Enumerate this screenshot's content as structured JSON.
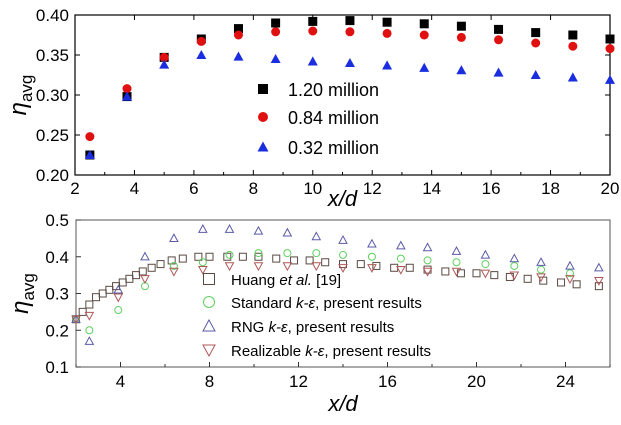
{
  "chart_data": [
    {
      "type": "scatter",
      "xlabel": "x/d",
      "ylabel": "η_avg",
      "xlim": [
        2,
        20
      ],
      "ylim": [
        0.2,
        0.4
      ],
      "xticks": [
        "2",
        "4",
        "6",
        "8",
        "10",
        "12",
        "14",
        "16",
        "18",
        "20"
      ],
      "yticks": [
        "0.20",
        "0.25",
        "0.30",
        "0.35",
        "0.40"
      ],
      "legend_position": "right",
      "series": [
        {
          "name": "1.20 million",
          "marker": "square",
          "filled": true,
          "color": "#000000",
          "x": [
            2.5,
            3.75,
            5.0,
            6.25,
            7.5,
            8.75,
            10.0,
            11.25,
            12.5,
            13.75,
            15.0,
            16.25,
            17.5,
            18.75,
            20.0
          ],
          "y": [
            0.225,
            0.298,
            0.347,
            0.37,
            0.383,
            0.39,
            0.392,
            0.393,
            0.391,
            0.389,
            0.386,
            0.382,
            0.378,
            0.375,
            0.37
          ]
        },
        {
          "name": "0.84 million",
          "marker": "circle",
          "filled": true,
          "color": "#e01010",
          "x": [
            2.5,
            3.75,
            5.0,
            6.25,
            7.5,
            8.75,
            10.0,
            11.25,
            12.5,
            13.75,
            15.0,
            16.25,
            17.5,
            18.75,
            20.0
          ],
          "y": [
            0.248,
            0.308,
            0.347,
            0.367,
            0.375,
            0.379,
            0.38,
            0.379,
            0.377,
            0.375,
            0.372,
            0.369,
            0.365,
            0.361,
            0.358
          ]
        },
        {
          "name": "0.32 million",
          "marker": "triangle",
          "filled": true,
          "color": "#1a2ee0",
          "x": [
            2.5,
            3.75,
            5.0,
            6.25,
            7.5,
            8.75,
            10.0,
            11.25,
            12.5,
            13.75,
            15.0,
            16.25,
            17.5,
            18.75,
            20.0
          ],
          "y": [
            0.225,
            0.298,
            0.338,
            0.35,
            0.348,
            0.345,
            0.342,
            0.34,
            0.337,
            0.334,
            0.331,
            0.328,
            0.325,
            0.322,
            0.319
          ]
        }
      ]
    },
    {
      "type": "scatter",
      "xlabel": "x/d",
      "ylabel": "η_avg",
      "xlim": [
        2,
        26
      ],
      "ylim": [
        0.1,
        0.5
      ],
      "xticks": [
        "4",
        "8",
        "12",
        "16",
        "20",
        "24"
      ],
      "yticks": [
        "0.1",
        "0.2",
        "0.3",
        "0.4",
        "0.5"
      ],
      "legend_position": "center",
      "series": [
        {
          "name": "Huang ",
          "name_italic": "et al.",
          "name_tail": " [19]",
          "marker": "square",
          "filled": false,
          "color": "#5a4a42",
          "x": [
            2.0,
            2.3,
            2.6,
            2.9,
            3.2,
            3.5,
            3.8,
            4.1,
            4.4,
            4.7,
            5.0,
            5.4,
            5.8,
            6.3,
            6.8,
            7.5,
            8.0,
            8.8,
            9.5,
            10.2,
            11.0,
            11.8,
            12.5,
            13.2,
            14.0,
            14.8,
            15.5,
            16.3,
            17.0,
            17.8,
            18.6,
            19.3,
            20.0,
            20.8,
            21.5,
            22.3,
            23.0,
            23.8,
            24.5,
            25.5
          ],
          "y": [
            0.23,
            0.25,
            0.27,
            0.29,
            0.3,
            0.31,
            0.32,
            0.33,
            0.34,
            0.35,
            0.36,
            0.37,
            0.38,
            0.39,
            0.395,
            0.4,
            0.4,
            0.4,
            0.4,
            0.4,
            0.395,
            0.39,
            0.39,
            0.385,
            0.38,
            0.38,
            0.375,
            0.37,
            0.37,
            0.365,
            0.36,
            0.355,
            0.355,
            0.35,
            0.345,
            0.34,
            0.335,
            0.33,
            0.325,
            0.32
          ]
        },
        {
          "name": "Standard ",
          "name_italic": "k-ε",
          "name_tail": ", present results",
          "marker": "circle",
          "filled": false,
          "color": "#5fd05f",
          "x": [
            2.0,
            2.6,
            3.9,
            5.1,
            6.4,
            7.7,
            8.9,
            10.2,
            11.5,
            12.8,
            14.0,
            15.3,
            16.6,
            17.8,
            19.1,
            20.4,
            21.7,
            22.9,
            24.2
          ],
          "y": [
            0.23,
            0.2,
            0.255,
            0.32,
            0.375,
            0.385,
            0.405,
            0.41,
            0.41,
            0.41,
            0.405,
            0.4,
            0.395,
            0.39,
            0.385,
            0.38,
            0.375,
            0.365,
            0.355
          ]
        },
        {
          "name": "RNG ",
          "name_italic": "k-ε",
          "name_tail": ", present results",
          "marker": "triangle",
          "filled": false,
          "color": "#5a5aa8",
          "x": [
            2.0,
            2.6,
            3.9,
            5.1,
            6.4,
            7.7,
            8.9,
            10.2,
            11.5,
            12.8,
            14.0,
            15.3,
            16.6,
            17.8,
            19.1,
            20.4,
            21.7,
            22.9,
            24.2,
            25.5
          ],
          "y": [
            0.23,
            0.17,
            0.31,
            0.4,
            0.45,
            0.475,
            0.475,
            0.47,
            0.465,
            0.455,
            0.445,
            0.435,
            0.43,
            0.425,
            0.415,
            0.405,
            0.395,
            0.385,
            0.375,
            0.37
          ]
        },
        {
          "name": "Realizable ",
          "name_italic": "k-ε",
          "name_tail": ", present results",
          "marker": "triangle-down",
          "filled": false,
          "color": "#b05858",
          "x": [
            2.0,
            2.6,
            3.9,
            5.1,
            6.4,
            7.7,
            8.9,
            10.2,
            11.5,
            12.8,
            14.0,
            15.3,
            16.6,
            17.8,
            19.1,
            20.4,
            21.7,
            22.9,
            24.2,
            25.5
          ],
          "y": [
            0.23,
            0.24,
            0.29,
            0.34,
            0.36,
            0.365,
            0.375,
            0.375,
            0.375,
            0.375,
            0.37,
            0.37,
            0.365,
            0.36,
            0.36,
            0.355,
            0.35,
            0.345,
            0.34,
            0.335
          ]
        }
      ]
    }
  ]
}
